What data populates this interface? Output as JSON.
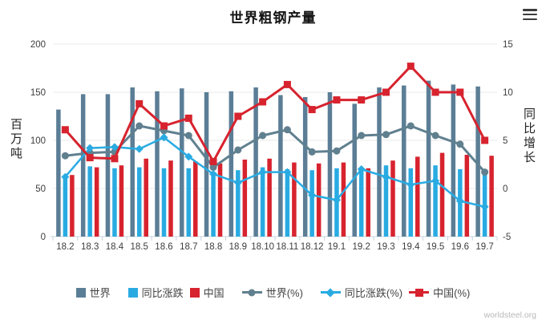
{
  "header": {
    "title": "世界粗钢产量"
  },
  "watermark": "worldsteel.org",
  "chart_data": {
    "type": "bar",
    "subtype": "bar+line combo, dual axis",
    "title": "世界粗钢产量",
    "categories": [
      "18.2",
      "18.3",
      "18.4",
      "18.5",
      "18.6",
      "18.7",
      "18.8",
      "18.9",
      "18.10",
      "18.11",
      "18.12",
      "19.1",
      "19.2",
      "19.3",
      "19.4",
      "19.5",
      "19.6",
      "19.7"
    ],
    "left_axis": {
      "label": "百万吨",
      "ticks": [
        0,
        50,
        100,
        150,
        200
      ],
      "range": [
        0,
        200
      ]
    },
    "right_axis": {
      "label": "同比增长",
      "ticks": [
        -5,
        0,
        5,
        10,
        15
      ],
      "range": [
        -5,
        15
      ]
    },
    "grid": true,
    "legend_position": "bottom",
    "bar_series": [
      {
        "name": "世界",
        "color": "#5b7e96",
        "axis": "left",
        "values": [
          132,
          148,
          148,
          155,
          151,
          154,
          150,
          151,
          155,
          147,
          145,
          150,
          138,
          155,
          157,
          162,
          158,
          156
        ]
      },
      {
        "name": "同比涨跌",
        "color": "#29abe2",
        "axis": "left",
        "values": [
          63,
          73,
          71,
          72,
          71,
          71,
          67,
          69,
          72,
          70,
          69,
          71,
          68,
          74,
          71,
          74,
          70,
          65
        ]
      },
      {
        "name": "中国",
        "color": "#d7232e",
        "axis": "left",
        "values": [
          64,
          72,
          74,
          81,
          79,
          78,
          76,
          80,
          81,
          77,
          76,
          77,
          71,
          79,
          83,
          87,
          85,
          84
        ]
      }
    ],
    "line_series": [
      {
        "name": "世界(%)",
        "color": "#60808f",
        "marker": "circle",
        "axis": "right",
        "values": [
          3.4,
          3.7,
          3.8,
          6.5,
          6.0,
          5.5,
          2.2,
          4.0,
          5.5,
          6.1,
          3.8,
          3.9,
          5.5,
          5.6,
          6.5,
          5.5,
          4.6,
          1.7
        ]
      },
      {
        "name": "同比涨跌(%)",
        "color": "#29abe2",
        "marker": "diamond",
        "axis": "right",
        "values": [
          1.2,
          4.2,
          4.3,
          4.1,
          5.3,
          3.3,
          1.5,
          0.6,
          1.7,
          1.7,
          -0.7,
          -1.2,
          2.0,
          1.2,
          0.4,
          0.8,
          -1.3,
          -1.9
        ]
      },
      {
        "name": "中国(%)",
        "color": "#d7232e",
        "marker": "square",
        "axis": "right",
        "values": [
          6.1,
          3.2,
          3.1,
          8.8,
          6.5,
          7.3,
          2.8,
          7.5,
          9.0,
          10.8,
          8.2,
          9.2,
          9.2,
          10.0,
          12.7,
          10.0,
          10.0,
          5.0
        ]
      }
    ]
  }
}
